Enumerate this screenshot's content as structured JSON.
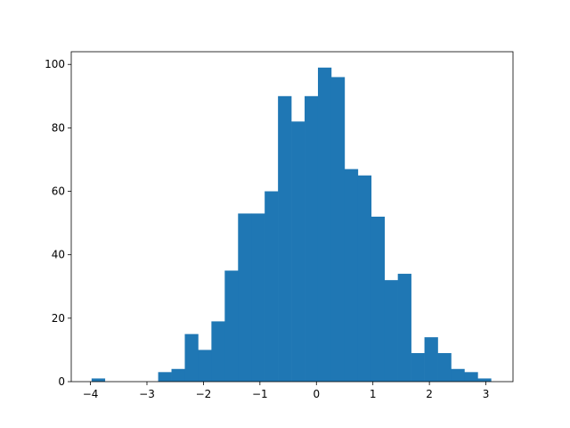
{
  "chart_data": {
    "type": "bar",
    "title": "",
    "xlabel": "",
    "ylabel": "",
    "bin_start": -3.98,
    "bin_width": 0.2357,
    "values": [
      1,
      0,
      0,
      0,
      0,
      3,
      4,
      15,
      10,
      19,
      35,
      53,
      53,
      60,
      90,
      82,
      90,
      99,
      96,
      67,
      65,
      52,
      32,
      34,
      9,
      14,
      9,
      4,
      3,
      1
    ],
    "xlim": [
      -4.34,
      3.48
    ],
    "ylim": [
      0,
      104
    ],
    "xticks": [
      -4,
      -3,
      -2,
      -1,
      0,
      1,
      2,
      3
    ],
    "xtick_labels": [
      "−4",
      "−3",
      "−2",
      "−1",
      "0",
      "1",
      "2",
      "3"
    ],
    "yticks": [
      0,
      20,
      40,
      60,
      80,
      100
    ],
    "ytick_labels": [
      "0",
      "20",
      "40",
      "60",
      "80",
      "100"
    ],
    "grid": false,
    "bar_color": "#1f77b4"
  }
}
